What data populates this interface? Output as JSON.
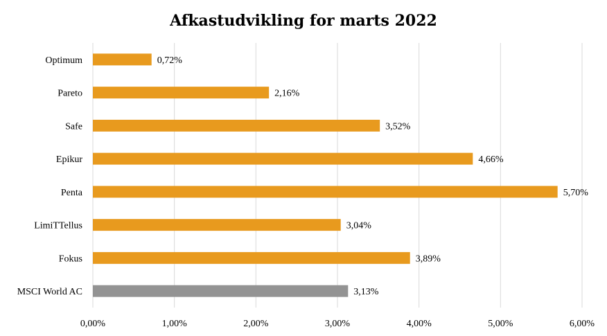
{
  "chart_data": {
    "type": "bar",
    "orientation": "horizontal",
    "title": "Afkastudvikling for marts 2022",
    "categories": [
      "Optimum",
      "Pareto",
      "Safe",
      "Epikur",
      "Penta",
      "LimiTTellus",
      "Fokus",
      "MSCI World AC"
    ],
    "values": [
      0.72,
      2.16,
      3.52,
      4.66,
      5.7,
      3.04,
      3.89,
      3.13
    ],
    "value_labels": [
      "0,72%",
      "2,16%",
      "3,52%",
      "4,66%",
      "5,70%",
      "3,04%",
      "3,89%",
      "3,13%"
    ],
    "bar_colors": [
      "#E89A1E",
      "#E89A1E",
      "#E89A1E",
      "#E89A1E",
      "#E89A1E",
      "#E89A1E",
      "#E89A1E",
      "#939393"
    ],
    "xlim": [
      0,
      6
    ],
    "x_ticks": [
      0,
      1,
      2,
      3,
      4,
      5,
      6
    ],
    "x_tick_labels": [
      "0,00%",
      "1,00%",
      "2,00%",
      "3,00%",
      "4,00%",
      "5,00%",
      "6,00%"
    ],
    "xlabel": "",
    "ylabel": "",
    "grid": true,
    "legend": null
  }
}
